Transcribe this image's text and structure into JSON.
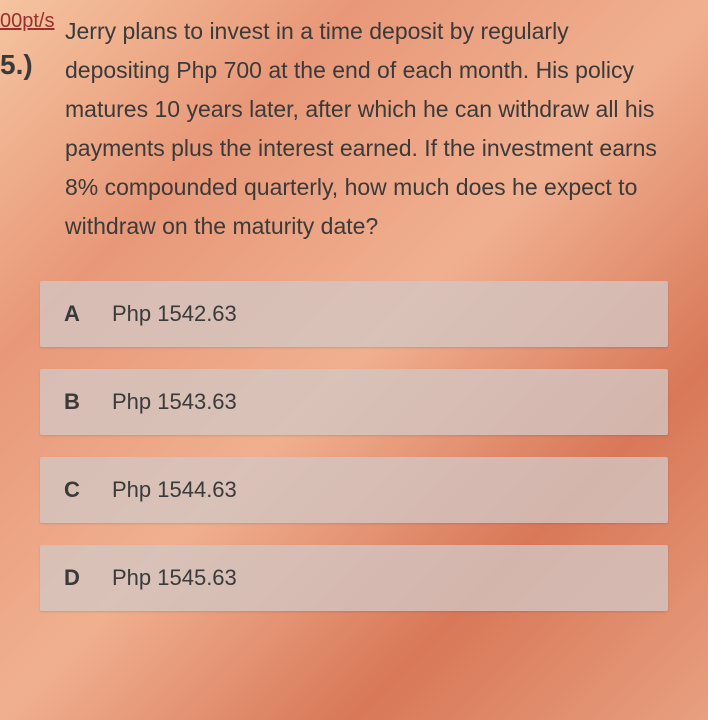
{
  "header": {
    "points_link": "00pt/s",
    "question_number": "5.)"
  },
  "question": {
    "text": "Jerry plans to invest in a time deposit by regularly depositing Php 700 at the end of each month. His policy matures 10 years later, after which he can withdraw all his payments plus the interest earned. If the investment earns 8% compounded quarterly, how much does he expect to withdraw on the maturity date?"
  },
  "options": [
    {
      "letter": "A",
      "text": "Php 1542.63"
    },
    {
      "letter": "B",
      "text": "Php 1543.63"
    },
    {
      "letter": "C",
      "text": "Php 1544.63"
    },
    {
      "letter": "D",
      "text": "Php 1545.63"
    }
  ],
  "styling": {
    "background_gradient_colors": [
      "#f5c4a0",
      "#e89878",
      "#f0b090",
      "#d87858",
      "#e8a080"
    ],
    "option_bg": "rgba(210,198,196,0.78)",
    "text_color": "#3a3a3a",
    "link_color": "#983030",
    "question_fontsize": 23,
    "option_fontsize": 22
  }
}
